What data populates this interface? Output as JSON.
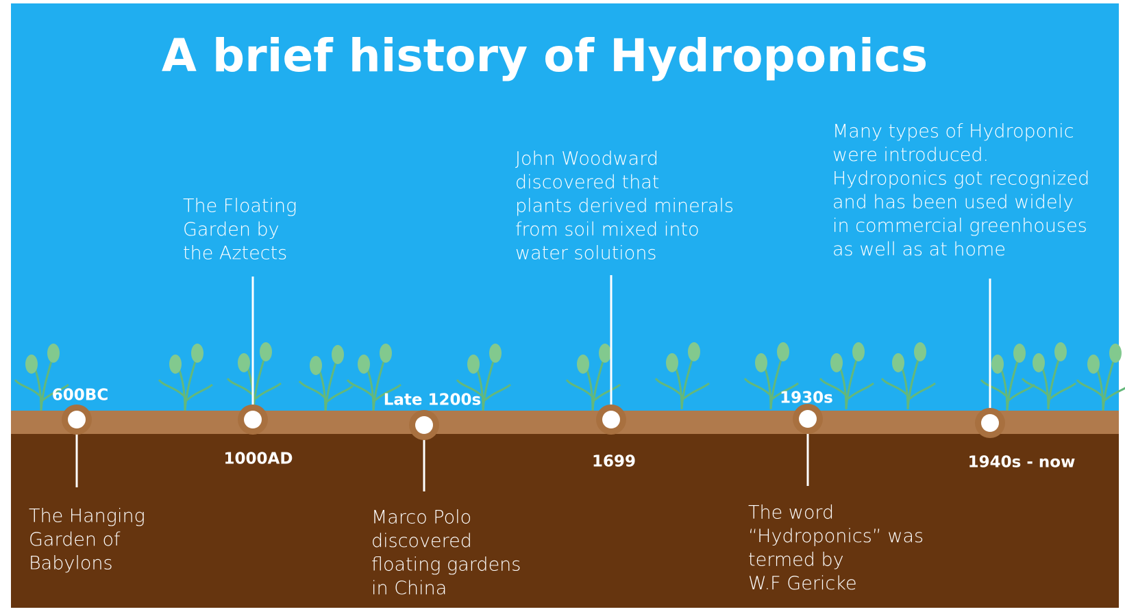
{
  "title": "A brief history of Hydroponics",
  "events": [
    {
      "date": "600BC",
      "description": [
        "The Hanging",
        "Garden of",
        "Babylons"
      ]
    },
    {
      "date": "1000AD",
      "description": [
        "The Floating",
        "Garden by",
        "the Aztects"
      ]
    },
    {
      "date": "Late 1200s",
      "description": [
        "Marco Polo",
        "discovered",
        "floating gardens",
        "in China"
      ]
    },
    {
      "date": "1699",
      "description": [
        "John Woodward",
        "discovered that",
        "plants derived minerals",
        "from soil mixed into",
        "water solutions"
      ]
    },
    {
      "date": "1930s",
      "description": [
        "The word",
        "“Hydroponics” was",
        "termed by",
        "W.F Gericke"
      ]
    },
    {
      "date": "1940s - now",
      "description": [
        "Many types of Hydroponic",
        "were introduced.",
        "Hydroponics got recognized",
        "and has been used widely",
        "in commercial greenhouses",
        "as well as at home"
      ]
    }
  ]
}
